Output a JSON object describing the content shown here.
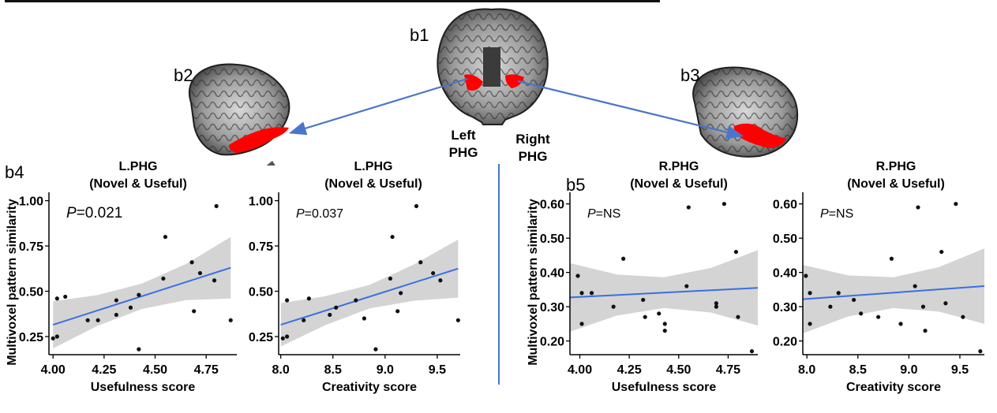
{
  "header": {
    "title_fragment": "..."
  },
  "brain": {
    "labels": {
      "b1": "b1",
      "b2": "b2",
      "b3": "b3"
    },
    "left_phg": "Left PHG",
    "right_phg": "Right PHG",
    "highlight_color": "#ff0000",
    "arrow_color": "#4a76c9"
  },
  "panel_labels": {
    "b4": "b4",
    "b5": "b5"
  },
  "ylabel": "Multivoxel pattern similarity",
  "chart_data": [
    {
      "type": "scatter",
      "title": [
        "L.PHG",
        "(Novel & Useful)"
      ],
      "xlabel": "Usefulness score",
      "ylabel": "Multivoxel pattern similarity",
      "annotation": "P=0.021",
      "xlim": [
        3.98,
        4.9
      ],
      "ylim": [
        0.15,
        1.02
      ],
      "xticks": [
        "4.00",
        "4.25",
        "4.50",
        "4.75"
      ],
      "xtick_values": [
        4.0,
        4.25,
        4.5,
        4.75
      ],
      "yticks": [
        "0.25",
        "0.50",
        "0.75",
        "1.00"
      ],
      "ytick_values": [
        0.25,
        0.5,
        0.75,
        1.0
      ],
      "points": [
        [
          4.0,
          0.24
        ],
        [
          4.02,
          0.25
        ],
        [
          4.02,
          0.46
        ],
        [
          4.06,
          0.47
        ],
        [
          4.17,
          0.34
        ],
        [
          4.22,
          0.34
        ],
        [
          4.31,
          0.45
        ],
        [
          4.31,
          0.37
        ],
        [
          4.38,
          0.41
        ],
        [
          4.42,
          0.18
        ],
        [
          4.42,
          0.48
        ],
        [
          4.54,
          0.57
        ],
        [
          4.55,
          0.8
        ],
        [
          4.68,
          0.66
        ],
        [
          4.69,
          0.39
        ],
        [
          4.72,
          0.6
        ],
        [
          4.79,
          0.56
        ],
        [
          4.8,
          0.97
        ],
        [
          4.87,
          0.34
        ]
      ],
      "fit": [
        [
          4.0,
          0.315
        ],
        [
          4.87,
          0.63
        ]
      ],
      "band_halfwidth": [
        0.13,
        0.085,
        0.07,
        0.1,
        0.17
      ]
    },
    {
      "type": "scatter",
      "title": [
        "L.PHG",
        "(Novel & Useful)"
      ],
      "xlabel": "Creativity score",
      "ylabel": "",
      "annotation": "P=0.037",
      "xlim": [
        7.98,
        9.72
      ],
      "ylim": [
        0.15,
        1.02
      ],
      "xticks": [
        "8.0",
        "8.5",
        "9.0",
        "9.5"
      ],
      "xtick_values": [
        8.0,
        8.5,
        9.0,
        9.5
      ],
      "yticks": [
        "0.25",
        "0.50",
        "0.75",
        "1.00"
      ],
      "ytick_values": [
        0.25,
        0.5,
        0.75,
        1.0
      ],
      "points": [
        [
          8.02,
          0.24
        ],
        [
          8.06,
          0.25
        ],
        [
          8.06,
          0.45
        ],
        [
          8.27,
          0.46
        ],
        [
          8.22,
          0.34
        ],
        [
          8.47,
          0.37
        ],
        [
          8.53,
          0.41
        ],
        [
          8.72,
          0.45
        ],
        [
          8.8,
          0.35
        ],
        [
          8.91,
          0.18
        ],
        [
          9.05,
          0.57
        ],
        [
          9.07,
          0.8
        ],
        [
          9.12,
          0.39
        ],
        [
          9.15,
          0.49
        ],
        [
          9.3,
          0.97
        ],
        [
          9.34,
          0.66
        ],
        [
          9.46,
          0.6
        ],
        [
          9.53,
          0.56
        ],
        [
          9.7,
          0.34
        ]
      ],
      "fit": [
        [
          8.0,
          0.315
        ],
        [
          9.7,
          0.625
        ]
      ],
      "band_halfwidth": [
        0.12,
        0.08,
        0.065,
        0.1,
        0.16
      ]
    },
    {
      "type": "scatter",
      "title": [
        "R.PHG",
        "(Novel & Useful)"
      ],
      "xlabel": "Usefulness score",
      "ylabel": "Multivoxel pattern similarity",
      "annotation": "P=NS",
      "xlim": [
        3.95,
        4.9
      ],
      "ylim": [
        0.16,
        0.62
      ],
      "xticks": [
        "4.00",
        "4.25",
        "4.50",
        "4.75"
      ],
      "xtick_values": [
        4.0,
        4.25,
        4.5,
        4.75
      ],
      "yticks": [
        "0.20",
        "0.30",
        "0.40",
        "0.50",
        "0.60"
      ],
      "ytick_values": [
        0.2,
        0.3,
        0.4,
        0.5,
        0.6
      ],
      "points": [
        [
          3.99,
          0.39
        ],
        [
          4.01,
          0.34
        ],
        [
          4.01,
          0.25
        ],
        [
          4.06,
          0.34
        ],
        [
          4.17,
          0.3
        ],
        [
          4.22,
          0.44
        ],
        [
          4.32,
          0.32
        ],
        [
          4.33,
          0.27
        ],
        [
          4.4,
          0.28
        ],
        [
          4.43,
          0.23
        ],
        [
          4.43,
          0.25
        ],
        [
          4.54,
          0.36
        ],
        [
          4.55,
          0.59
        ],
        [
          4.69,
          0.3
        ],
        [
          4.69,
          0.31
        ],
        [
          4.73,
          0.6
        ],
        [
          4.79,
          0.46
        ],
        [
          4.8,
          0.27
        ],
        [
          4.87,
          0.17
        ]
      ],
      "fit": [
        [
          3.95,
          0.327
        ],
        [
          4.9,
          0.355
        ]
      ],
      "band_halfwidth": [
        0.1,
        0.06,
        0.045,
        0.065,
        0.11
      ]
    },
    {
      "type": "scatter",
      "title": [
        "R.PHG",
        "(Novel & Useful)"
      ],
      "xlabel": "Creativity score",
      "ylabel": "",
      "annotation": "P=NS",
      "xlim": [
        7.96,
        9.74
      ],
      "ylim": [
        0.16,
        0.62
      ],
      "xticks": [
        "8.0",
        "8.5",
        "9.0",
        "9.5"
      ],
      "xtick_values": [
        8.0,
        8.5,
        9.0,
        9.5
      ],
      "yticks": [
        "0.20",
        "0.30",
        "0.40",
        "0.50",
        "0.60"
      ],
      "ytick_values": [
        0.2,
        0.3,
        0.4,
        0.5,
        0.6
      ],
      "points": [
        [
          7.99,
          0.39
        ],
        [
          8.03,
          0.34
        ],
        [
          8.03,
          0.25
        ],
        [
          8.23,
          0.3
        ],
        [
          8.31,
          0.34
        ],
        [
          8.46,
          0.32
        ],
        [
          8.53,
          0.28
        ],
        [
          8.7,
          0.27
        ],
        [
          8.83,
          0.44
        ],
        [
          8.92,
          0.25
        ],
        [
          9.06,
          0.36
        ],
        [
          9.09,
          0.59
        ],
        [
          9.14,
          0.3
        ],
        [
          9.16,
          0.23
        ],
        [
          9.32,
          0.46
        ],
        [
          9.36,
          0.31
        ],
        [
          9.46,
          0.6
        ],
        [
          9.53,
          0.27
        ],
        [
          9.7,
          0.17
        ]
      ],
      "fit": [
        [
          7.96,
          0.322
        ],
        [
          9.74,
          0.36
        ]
      ],
      "band_halfwidth": [
        0.1,
        0.06,
        0.045,
        0.065,
        0.11
      ]
    }
  ]
}
